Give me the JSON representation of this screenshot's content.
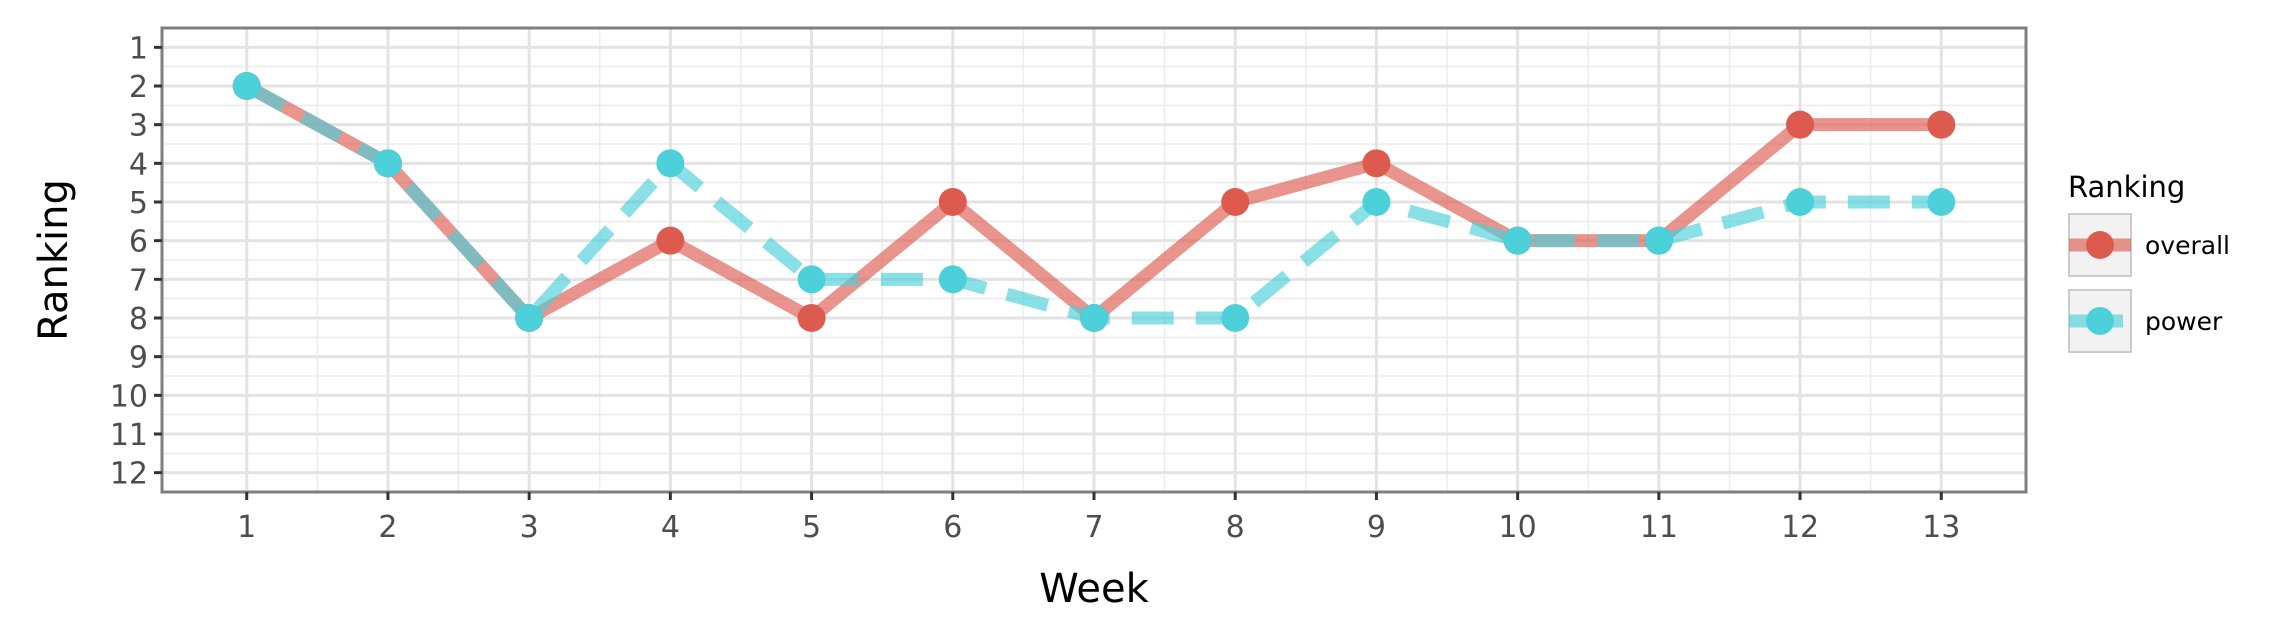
{
  "chart_data": {
    "type": "line",
    "xlabel": "Week",
    "ylabel": "Ranking",
    "x": [
      1,
      2,
      3,
      4,
      5,
      6,
      7,
      8,
      9,
      10,
      11,
      12,
      13
    ],
    "xlim": [
      0.4,
      13.6
    ],
    "ylim": [
      12.5,
      0.5
    ],
    "y_reversed": true,
    "y_ticks": [
      1,
      2,
      3,
      4,
      5,
      6,
      7,
      8,
      9,
      10,
      11,
      12
    ],
    "x_ticks": [
      1,
      2,
      3,
      4,
      5,
      6,
      7,
      8,
      9,
      10,
      11,
      12,
      13
    ],
    "grid": true,
    "legend": {
      "title": "Ranking",
      "position": "right"
    },
    "series": [
      {
        "name": "overall",
        "color": "#dd5a4e",
        "line_style": "solid",
        "values": [
          2,
          4,
          8,
          6,
          8,
          5,
          8,
          5,
          4,
          6,
          6,
          3,
          3
        ]
      },
      {
        "name": "power",
        "color": "#4cd0da",
        "line_style": "dashed",
        "values": [
          2,
          4,
          8,
          4,
          7,
          7,
          8,
          8,
          5,
          6,
          6,
          5,
          5
        ]
      }
    ]
  }
}
